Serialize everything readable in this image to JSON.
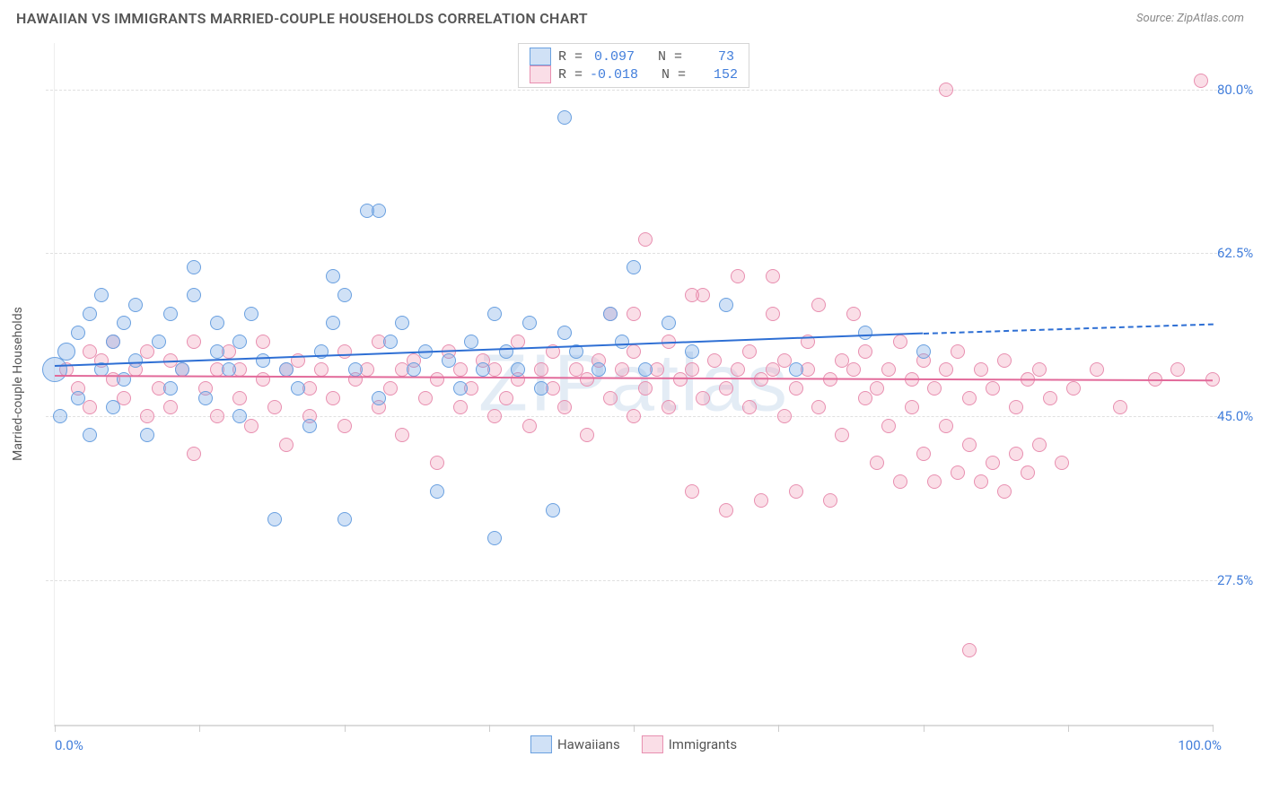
{
  "title": "HAWAIIAN VS IMMIGRANTS MARRIED-COUPLE HOUSEHOLDS CORRELATION CHART",
  "source": "Source: ZipAtlas.com",
  "watermark": "ZIPatlas",
  "chart": {
    "type": "scatter",
    "background_color": "#ffffff",
    "grid_color": "#e0e0e0",
    "axis_font_color": "#427edb",
    "axis_font_size": 15,
    "title_font_color": "#555555",
    "title_font_size": 16,
    "ylabel": "Married-couple Households",
    "ylabel_font_size": 14,
    "xlim": [
      0,
      100
    ],
    "ylim": [
      12,
      85
    ],
    "y_gridlines": [
      27.5,
      45.0,
      62.5,
      80.0
    ],
    "y_tick_labels": [
      "27.5%",
      "45.0%",
      "62.5%",
      "80.0%"
    ],
    "x_ticks": [
      0,
      12.5,
      25,
      37.5,
      50,
      62.5,
      75,
      87.5,
      100
    ],
    "x_min_label": "0.0%",
    "x_max_label": "100.0%",
    "marker_radius_default": 8,
    "marker_border_width": 1.5,
    "series": [
      {
        "name": "Hawaiians",
        "fill": "rgba(120,170,230,0.35)",
        "stroke": "#6aa0e0",
        "R": "0.097",
        "N": "73",
        "trend": {
          "x0": 0,
          "y0": 50.5,
          "x1": 75,
          "y1": 54.0,
          "x1_ext": 100,
          "y1_ext": 55.0,
          "color": "#2e6fd4",
          "width": 2
        },
        "points": [
          {
            "x": 0,
            "y": 50,
            "r": 14
          },
          {
            "x": 0.5,
            "y": 45
          },
          {
            "x": 1,
            "y": 52,
            "r": 10
          },
          {
            "x": 2,
            "y": 47
          },
          {
            "x": 2,
            "y": 54
          },
          {
            "x": 3,
            "y": 56
          },
          {
            "x": 3,
            "y": 43
          },
          {
            "x": 4,
            "y": 50
          },
          {
            "x": 4,
            "y": 58
          },
          {
            "x": 5,
            "y": 53
          },
          {
            "x": 5,
            "y": 46
          },
          {
            "x": 6,
            "y": 55
          },
          {
            "x": 6,
            "y": 49
          },
          {
            "x": 7,
            "y": 57
          },
          {
            "x": 7,
            "y": 51
          },
          {
            "x": 8,
            "y": 43
          },
          {
            "x": 9,
            "y": 53
          },
          {
            "x": 10,
            "y": 56
          },
          {
            "x": 10,
            "y": 48
          },
          {
            "x": 11,
            "y": 50
          },
          {
            "x": 12,
            "y": 58
          },
          {
            "x": 12,
            "y": 61
          },
          {
            "x": 13,
            "y": 47
          },
          {
            "x": 14,
            "y": 52
          },
          {
            "x": 14,
            "y": 55
          },
          {
            "x": 15,
            "y": 50
          },
          {
            "x": 16,
            "y": 45
          },
          {
            "x": 16,
            "y": 53
          },
          {
            "x": 17,
            "y": 56
          },
          {
            "x": 18,
            "y": 51
          },
          {
            "x": 19,
            "y": 34
          },
          {
            "x": 20,
            "y": 50
          },
          {
            "x": 21,
            "y": 48
          },
          {
            "x": 22,
            "y": 44
          },
          {
            "x": 23,
            "y": 52
          },
          {
            "x": 24,
            "y": 55
          },
          {
            "x": 24,
            "y": 60
          },
          {
            "x": 25,
            "y": 34
          },
          {
            "x": 25,
            "y": 58
          },
          {
            "x": 26,
            "y": 50
          },
          {
            "x": 27,
            "y": 67
          },
          {
            "x": 28,
            "y": 67
          },
          {
            "x": 28,
            "y": 47
          },
          {
            "x": 29,
            "y": 53
          },
          {
            "x": 30,
            "y": 55
          },
          {
            "x": 31,
            "y": 50
          },
          {
            "x": 32,
            "y": 52
          },
          {
            "x": 33,
            "y": 37
          },
          {
            "x": 34,
            "y": 51
          },
          {
            "x": 35,
            "y": 48
          },
          {
            "x": 36,
            "y": 53
          },
          {
            "x": 37,
            "y": 50
          },
          {
            "x": 38,
            "y": 32
          },
          {
            "x": 38,
            "y": 56
          },
          {
            "x": 39,
            "y": 52
          },
          {
            "x": 40,
            "y": 50
          },
          {
            "x": 41,
            "y": 55
          },
          {
            "x": 42,
            "y": 48
          },
          {
            "x": 43,
            "y": 35
          },
          {
            "x": 44,
            "y": 54
          },
          {
            "x": 44,
            "y": 77
          },
          {
            "x": 45,
            "y": 52
          },
          {
            "x": 47,
            "y": 50
          },
          {
            "x": 48,
            "y": 56
          },
          {
            "x": 49,
            "y": 53
          },
          {
            "x": 50,
            "y": 61
          },
          {
            "x": 51,
            "y": 50
          },
          {
            "x": 53,
            "y": 55
          },
          {
            "x": 55,
            "y": 52
          },
          {
            "x": 58,
            "y": 57
          },
          {
            "x": 64,
            "y": 50
          },
          {
            "x": 70,
            "y": 54
          },
          {
            "x": 75,
            "y": 52
          }
        ]
      },
      {
        "name": "Immigrants",
        "fill": "rgba(240,160,185,0.35)",
        "stroke": "#e88fb0",
        "R": "-0.018",
        "N": "152",
        "trend": {
          "x0": 0,
          "y0": 49.5,
          "x1": 100,
          "y1": 49.0,
          "color": "#e26a9a",
          "width": 2
        },
        "points": [
          {
            "x": 1,
            "y": 50
          },
          {
            "x": 2,
            "y": 48
          },
          {
            "x": 3,
            "y": 52
          },
          {
            "x": 3,
            "y": 46
          },
          {
            "x": 4,
            "y": 51
          },
          {
            "x": 5,
            "y": 49
          },
          {
            "x": 5,
            "y": 53
          },
          {
            "x": 6,
            "y": 47
          },
          {
            "x": 7,
            "y": 50
          },
          {
            "x": 8,
            "y": 45
          },
          {
            "x": 8,
            "y": 52
          },
          {
            "x": 9,
            "y": 48
          },
          {
            "x": 10,
            "y": 51
          },
          {
            "x": 10,
            "y": 46
          },
          {
            "x": 11,
            "y": 50
          },
          {
            "x": 12,
            "y": 41
          },
          {
            "x": 12,
            "y": 53
          },
          {
            "x": 13,
            "y": 48
          },
          {
            "x": 14,
            "y": 50
          },
          {
            "x": 14,
            "y": 45
          },
          {
            "x": 15,
            "y": 52
          },
          {
            "x": 16,
            "y": 47
          },
          {
            "x": 16,
            "y": 50
          },
          {
            "x": 17,
            "y": 44
          },
          {
            "x": 18,
            "y": 49
          },
          {
            "x": 18,
            "y": 53
          },
          {
            "x": 19,
            "y": 46
          },
          {
            "x": 20,
            "y": 50
          },
          {
            "x": 20,
            "y": 42
          },
          {
            "x": 21,
            "y": 51
          },
          {
            "x": 22,
            "y": 48
          },
          {
            "x": 22,
            "y": 45
          },
          {
            "x": 23,
            "y": 50
          },
          {
            "x": 24,
            "y": 47
          },
          {
            "x": 25,
            "y": 52
          },
          {
            "x": 25,
            "y": 44
          },
          {
            "x": 26,
            "y": 49
          },
          {
            "x": 27,
            "y": 50
          },
          {
            "x": 28,
            "y": 46
          },
          {
            "x": 28,
            "y": 53
          },
          {
            "x": 29,
            "y": 48
          },
          {
            "x": 30,
            "y": 50
          },
          {
            "x": 30,
            "y": 43
          },
          {
            "x": 31,
            "y": 51
          },
          {
            "x": 32,
            "y": 47
          },
          {
            "x": 33,
            "y": 49
          },
          {
            "x": 33,
            "y": 40
          },
          {
            "x": 34,
            "y": 52
          },
          {
            "x": 35,
            "y": 46
          },
          {
            "x": 35,
            "y": 50
          },
          {
            "x": 36,
            "y": 48
          },
          {
            "x": 37,
            "y": 51
          },
          {
            "x": 38,
            "y": 45
          },
          {
            "x": 38,
            "y": 50
          },
          {
            "x": 39,
            "y": 47
          },
          {
            "x": 40,
            "y": 53
          },
          {
            "x": 40,
            "y": 49
          },
          {
            "x": 41,
            "y": 44
          },
          {
            "x": 42,
            "y": 50
          },
          {
            "x": 43,
            "y": 48
          },
          {
            "x": 43,
            "y": 52
          },
          {
            "x": 44,
            "y": 46
          },
          {
            "x": 45,
            "y": 50
          },
          {
            "x": 46,
            "y": 49
          },
          {
            "x": 46,
            "y": 43
          },
          {
            "x": 47,
            "y": 51
          },
          {
            "x": 48,
            "y": 47
          },
          {
            "x": 48,
            "y": 56
          },
          {
            "x": 49,
            "y": 50
          },
          {
            "x": 50,
            "y": 45
          },
          {
            "x": 50,
            "y": 52
          },
          {
            "x": 51,
            "y": 48
          },
          {
            "x": 51,
            "y": 64
          },
          {
            "x": 52,
            "y": 50
          },
          {
            "x": 53,
            "y": 46
          },
          {
            "x": 53,
            "y": 53
          },
          {
            "x": 54,
            "y": 49
          },
          {
            "x": 55,
            "y": 50
          },
          {
            "x": 55,
            "y": 37
          },
          {
            "x": 56,
            "y": 47
          },
          {
            "x": 56,
            "y": 58
          },
          {
            "x": 57,
            "y": 51
          },
          {
            "x": 58,
            "y": 48
          },
          {
            "x": 58,
            "y": 35
          },
          {
            "x": 59,
            "y": 50
          },
          {
            "x": 59,
            "y": 60
          },
          {
            "x": 60,
            "y": 46
          },
          {
            "x": 60,
            "y": 52
          },
          {
            "x": 61,
            "y": 49
          },
          {
            "x": 61,
            "y": 36
          },
          {
            "x": 62,
            "y": 50
          },
          {
            "x": 62,
            "y": 56
          },
          {
            "x": 63,
            "y": 45
          },
          {
            "x": 63,
            "y": 51
          },
          {
            "x": 64,
            "y": 48
          },
          {
            "x": 64,
            "y": 37
          },
          {
            "x": 65,
            "y": 50
          },
          {
            "x": 65,
            "y": 53
          },
          {
            "x": 66,
            "y": 46
          },
          {
            "x": 66,
            "y": 57
          },
          {
            "x": 67,
            "y": 49
          },
          {
            "x": 67,
            "y": 36
          },
          {
            "x": 68,
            "y": 51
          },
          {
            "x": 68,
            "y": 43
          },
          {
            "x": 69,
            "y": 50
          },
          {
            "x": 69,
            "y": 56
          },
          {
            "x": 70,
            "y": 47
          },
          {
            "x": 70,
            "y": 52
          },
          {
            "x": 71,
            "y": 48
          },
          {
            "x": 71,
            "y": 40
          },
          {
            "x": 72,
            "y": 50
          },
          {
            "x": 72,
            "y": 44
          },
          {
            "x": 73,
            "y": 53
          },
          {
            "x": 73,
            "y": 38
          },
          {
            "x": 74,
            "y": 49
          },
          {
            "x": 74,
            "y": 46
          },
          {
            "x": 75,
            "y": 51
          },
          {
            "x": 75,
            "y": 41
          },
          {
            "x": 76,
            "y": 48
          },
          {
            "x": 76,
            "y": 38
          },
          {
            "x": 77,
            "y": 50
          },
          {
            "x": 77,
            "y": 44
          },
          {
            "x": 78,
            "y": 52
          },
          {
            "x": 78,
            "y": 39
          },
          {
            "x": 79,
            "y": 47
          },
          {
            "x": 79,
            "y": 42
          },
          {
            "x": 80,
            "y": 50
          },
          {
            "x": 80,
            "y": 38
          },
          {
            "x": 81,
            "y": 48
          },
          {
            "x": 81,
            "y": 40
          },
          {
            "x": 82,
            "y": 51
          },
          {
            "x": 82,
            "y": 37
          },
          {
            "x": 83,
            "y": 46
          },
          {
            "x": 83,
            "y": 41
          },
          {
            "x": 84,
            "y": 49
          },
          {
            "x": 84,
            "y": 39
          },
          {
            "x": 85,
            "y": 50
          },
          {
            "x": 85,
            "y": 42
          },
          {
            "x": 86,
            "y": 47
          },
          {
            "x": 87,
            "y": 40
          },
          {
            "x": 77,
            "y": 80
          },
          {
            "x": 79,
            "y": 20
          },
          {
            "x": 99,
            "y": 81
          },
          {
            "x": 88,
            "y": 48
          },
          {
            "x": 90,
            "y": 50
          },
          {
            "x": 92,
            "y": 46
          },
          {
            "x": 95,
            "y": 49
          },
          {
            "x": 97,
            "y": 50
          },
          {
            "x": 100,
            "y": 49
          },
          {
            "x": 62,
            "y": 60
          },
          {
            "x": 55,
            "y": 58
          },
          {
            "x": 50,
            "y": 56
          }
        ]
      }
    ],
    "legend_top": {
      "R_label": "R =",
      "N_label": "N ="
    },
    "legend_bottom": {
      "items": [
        "Hawaiians",
        "Immigrants"
      ]
    }
  }
}
